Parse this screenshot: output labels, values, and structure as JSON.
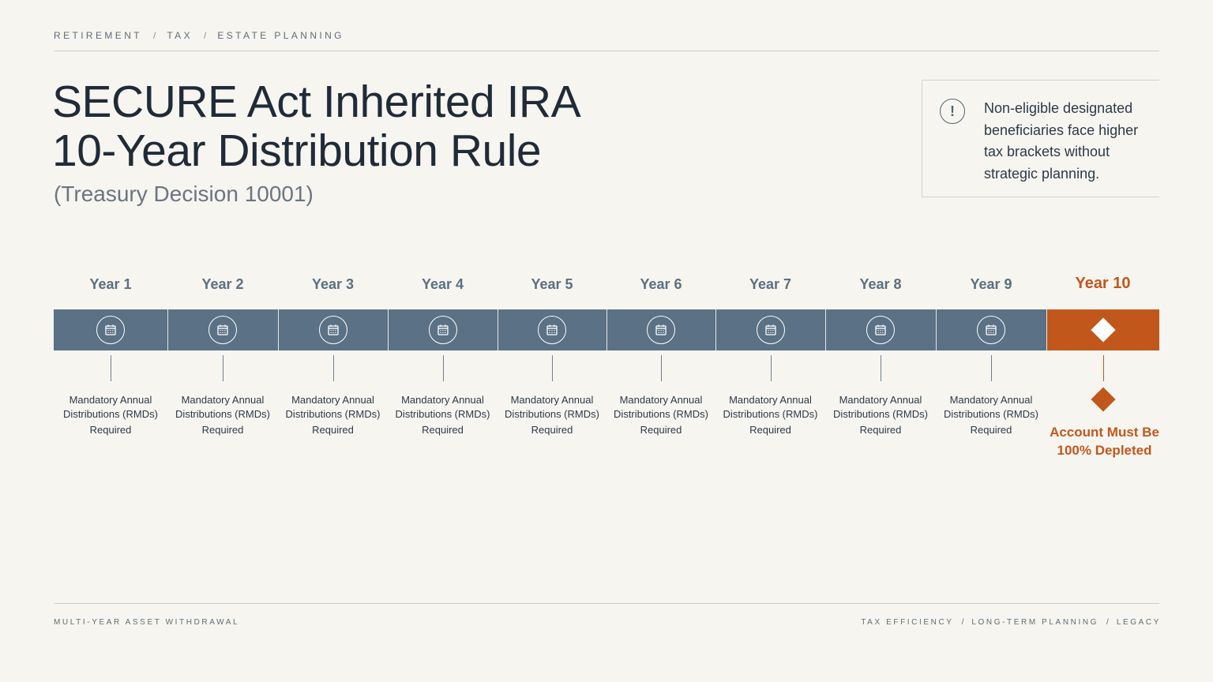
{
  "breadcrumb": [
    "RETIREMENT",
    "TAX",
    "ESTATE PLANNING"
  ],
  "title_line1": "SECURE Act Inherited IRA",
  "title_line2": "10-Year Distribution Rule",
  "subtitle": "(Treasury Decision 10001)",
  "callout": {
    "icon": "exclamation-circle-icon",
    "text": "Non-eligible designated beneficiaries face higher tax brackets without strategic planning."
  },
  "timeline": {
    "years": [
      {
        "label": "Year 1",
        "line1": "Mandatory Annual",
        "line2": "Distributions (RMDs)",
        "line3": "Required"
      },
      {
        "label": "Year 2",
        "line1": "Mandatory Annual",
        "line2": "Distributions (RMDs)",
        "line3": "Required"
      },
      {
        "label": "Year 3",
        "line1": "Mandatory Annual",
        "line2": "Distributions (RMDs)",
        "line3": "Required"
      },
      {
        "label": "Year 4",
        "line1": "Mandatory Annual",
        "line2": "Distributions (RMDs)",
        "line3": "Required"
      },
      {
        "label": "Year 5",
        "line1": "Mandatory Annual",
        "line2": "Distributions (RMDs)",
        "line3": "Required"
      },
      {
        "label": "Year 6",
        "line1": "Mandatory Annual",
        "line2": "Distributions (RMDs)",
        "line3": "Required"
      },
      {
        "label": "Year 7",
        "line1": "Mandatory Annual",
        "line2": "Distributions (RMDs)",
        "line3": "Required"
      },
      {
        "label": "Year 8",
        "line1": "Mandatory Annual",
        "line2": "Distributions (RMDs)",
        "line3": "Required"
      },
      {
        "label": "Year 9",
        "line1": "Mandatory Annual",
        "line2": "Distributions (RMDs)",
        "line3": "Required"
      }
    ],
    "final": {
      "label": "Year 10",
      "line1": "Account Must Be",
      "line2": "100% Depleted"
    },
    "icon": "calendar-icon",
    "final_icon": "diamond-icon",
    "colors": {
      "bar": "#5a7186",
      "accent": "#c2571c"
    }
  },
  "footer": {
    "left": "MULTI-YEAR ASSET WITHDRAWAL",
    "right": [
      "TAX EFFICIENCY",
      "LONG-TERM PLANNING",
      "LEGACY"
    ]
  }
}
